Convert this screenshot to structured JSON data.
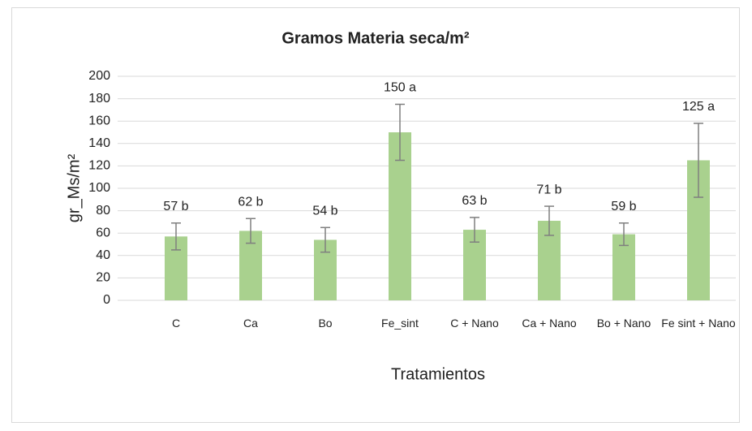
{
  "chart_data": {
    "type": "bar",
    "title": "Gramos Materia seca/m²",
    "x_label": "Tratamientos",
    "y_label": "gr_Ms/m²",
    "categories": [
      "C",
      "Ca",
      "Bo",
      "Fe_sint",
      "C + Nano",
      "Ca + Nano",
      "Bo + Nano",
      "Fe sint + Nano"
    ],
    "values": [
      57,
      62,
      54,
      150,
      63,
      71,
      59,
      125
    ],
    "value_labels": [
      "57 b",
      "62 b",
      "54 b",
      "150 a",
      "63 b",
      "71 b",
      "59 b",
      "125 a"
    ],
    "errors": [
      12,
      11,
      11,
      25,
      11,
      13,
      10,
      33
    ],
    "color": "#a9d18e",
    "error_color": "#7f7f7f",
    "ylim": [
      0,
      200
    ],
    "yticks": [
      0,
      20,
      40,
      60,
      80,
      100,
      120,
      140,
      160,
      180,
      200
    ],
    "grid": true
  }
}
